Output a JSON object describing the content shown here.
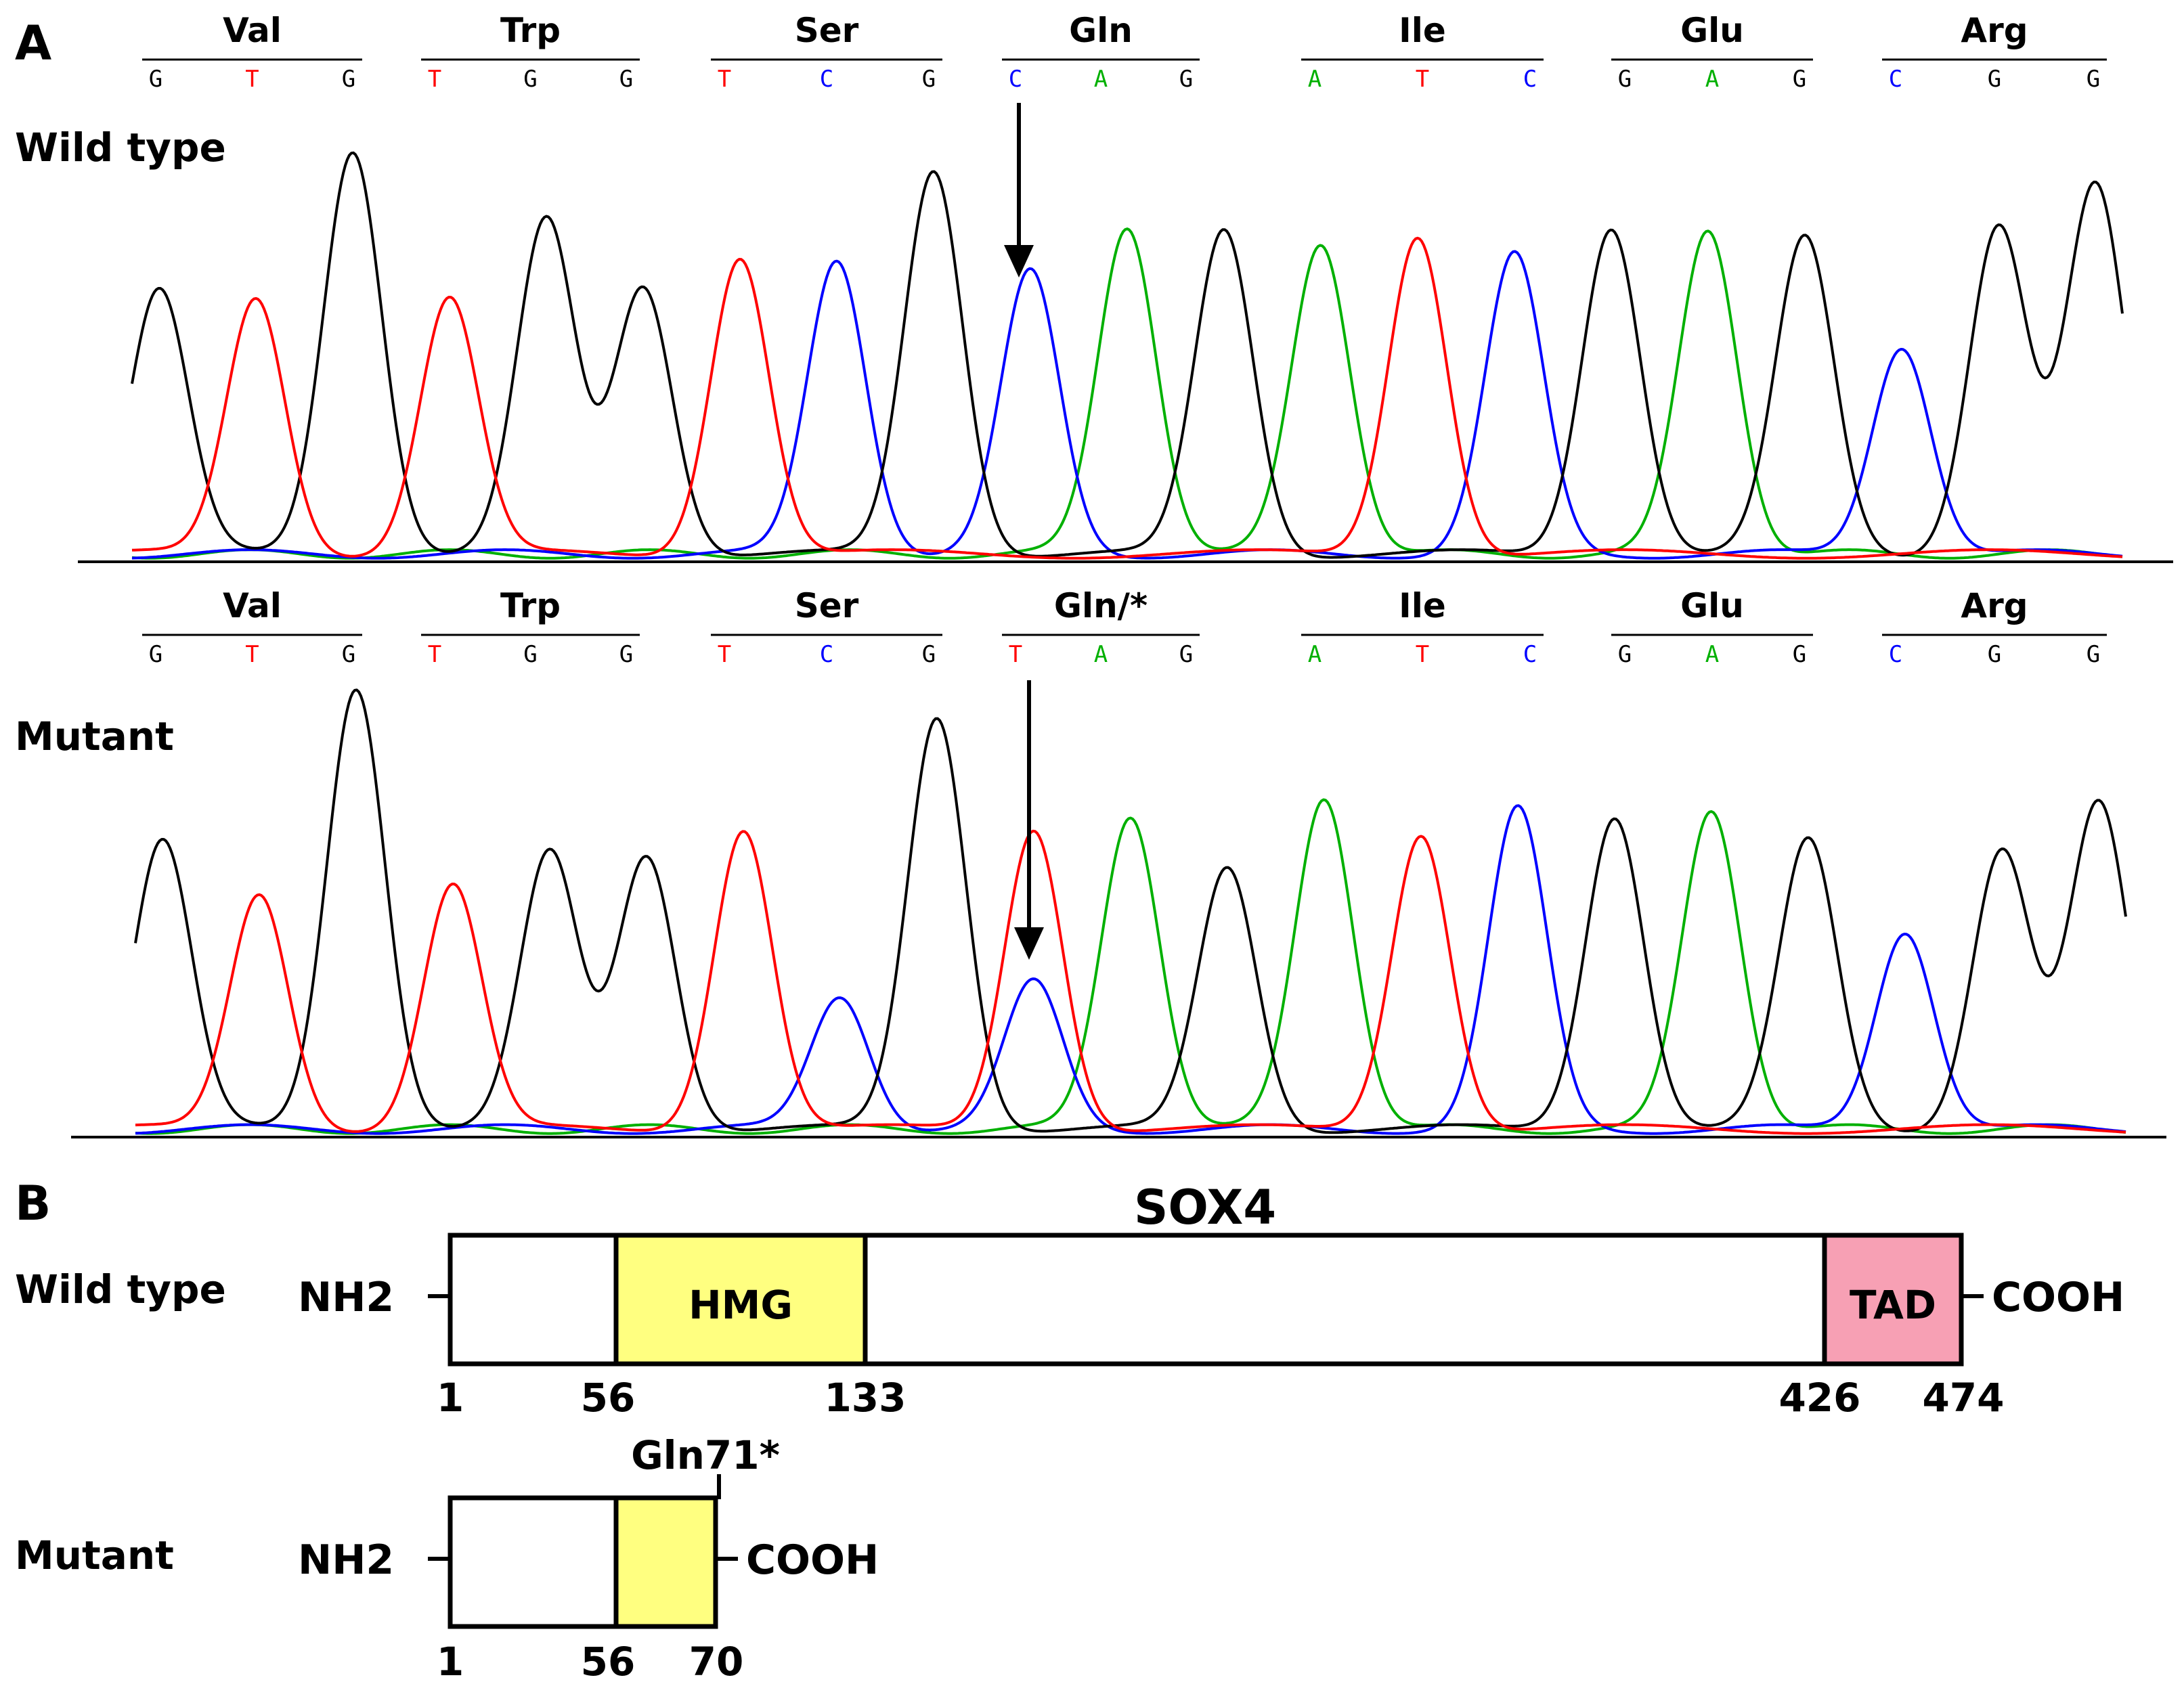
{
  "panel_a": {
    "label": "A",
    "colors": {
      "A": "#00b000",
      "C": "#0000ff",
      "G": "#000000",
      "T": "#ff0000"
    },
    "wild_type": {
      "title": "Wild type",
      "codons": [
        {
          "aa": "Val",
          "bases": [
            "G",
            "T",
            "G"
          ]
        },
        {
          "aa": "Trp",
          "bases": [
            "T",
            "G",
            "G"
          ]
        },
        {
          "aa": "Ser",
          "bases": [
            "T",
            "C",
            "G"
          ]
        },
        {
          "aa": "Gln",
          "bases": [
            "C",
            "A",
            "G"
          ]
        },
        {
          "aa": "Ile",
          "bases": [
            "A",
            "T",
            "C"
          ]
        },
        {
          "aa": "Glu",
          "bases": [
            "G",
            "A",
            "G"
          ]
        },
        {
          "aa": "Arg",
          "bases": [
            "C",
            "G",
            "G"
          ]
        }
      ],
      "peaks": [
        0.62,
        0.6,
        0.95,
        0.6,
        0.78,
        0.63,
        0.7,
        0.69,
        0.9,
        0.66,
        0.77,
        0.76,
        0.73,
        0.75,
        0.7,
        0.77,
        0.76,
        0.74,
        0.49,
        0.77,
        0.86
      ]
    },
    "mutant": {
      "title": "Mutant",
      "codons": [
        {
          "aa": "Val",
          "bases": [
            "G",
            "T",
            "G"
          ]
        },
        {
          "aa": "Trp",
          "bases": [
            "T",
            "G",
            "G"
          ]
        },
        {
          "aa": "Ser",
          "bases": [
            "T",
            "C",
            "G"
          ]
        },
        {
          "aa": "Gln/*",
          "bases": [
            "T",
            "A",
            "G"
          ]
        },
        {
          "aa": "Ile",
          "bases": [
            "A",
            "T",
            "C"
          ]
        },
        {
          "aa": "Glu",
          "bases": [
            "G",
            "A",
            "G"
          ]
        },
        {
          "aa": "Arg",
          "bases": [
            "C",
            "G",
            "G"
          ]
        }
      ],
      "peaks": [
        0.65,
        0.53,
        1.0,
        0.55,
        0.62,
        0.62,
        0.68,
        0.3,
        0.93,
        0.68,
        0.71,
        0.59,
        0.75,
        0.67,
        0.72,
        0.71,
        0.72,
        0.65,
        0.45,
        0.63,
        0.73
      ],
      "overlap_peak": {
        "index": 9,
        "base": "C",
        "height": 0.33
      }
    }
  },
  "panel_b": {
    "label": "B",
    "protein": "SOX4",
    "wild_type": {
      "title": "Wild type",
      "n_term": "NH2",
      "c_term": "COOH",
      "length": 474,
      "domains": [
        {
          "name": "HMG",
          "start": 56,
          "end": 133,
          "color": "#ffff80"
        },
        {
          "name": "TAD",
          "start": 426,
          "end": 474,
          "color": "#f7a0b4"
        }
      ],
      "ticks": [
        "1",
        "56",
        "133",
        "426",
        "474"
      ]
    },
    "mutant": {
      "title": "Mutant",
      "n_term": "NH2",
      "c_term": "COOH",
      "length": 70,
      "domains": [
        {
          "name": "",
          "start": 56,
          "end": 70,
          "color": "#ffff80"
        }
      ],
      "ticks": [
        "1",
        "56",
        "70"
      ],
      "mutation_label": "Gln71*"
    }
  }
}
